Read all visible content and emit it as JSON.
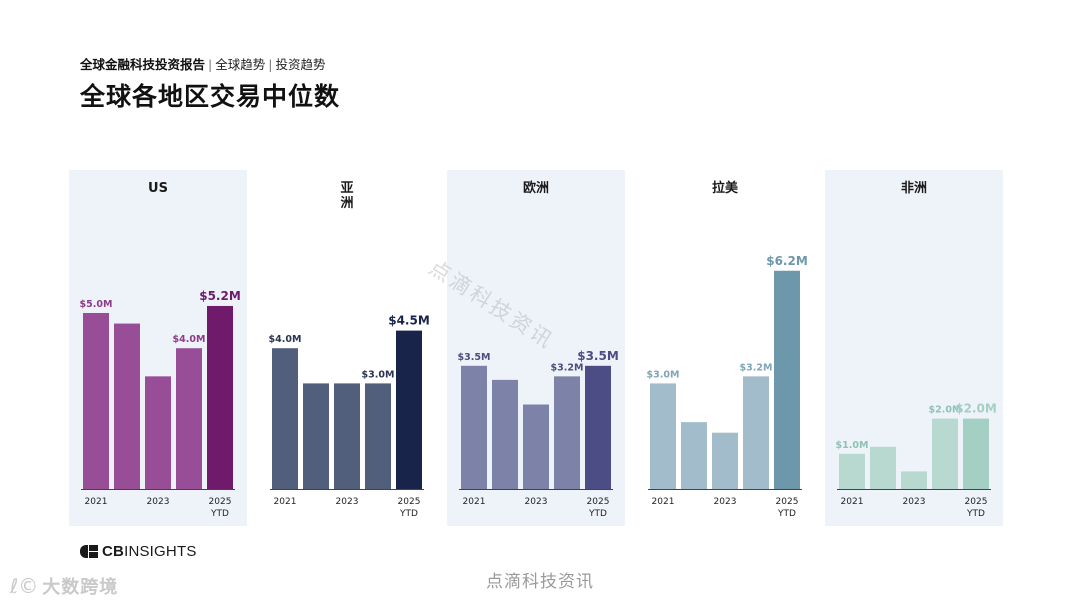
{
  "header": {
    "report_name": "全球金融科技投资报告",
    "crumb_1": "全球趋势",
    "crumb_2": "投资趋势",
    "separator": "|",
    "title": "全球各地区交易中位数"
  },
  "chart_data": [
    {
      "type": "bar",
      "title": "US",
      "x": [
        "2021",
        "2022",
        "2023",
        "2024",
        "2025 YTD"
      ],
      "tick_labels": [
        "2021",
        "2023",
        "2025",
        "YTD"
      ],
      "values": [
        5.0,
        4.7,
        3.2,
        4.0,
        5.2
      ],
      "value_labels": [
        "$5.0M",
        "",
        "",
        "$4.0M",
        "$5.2M"
      ],
      "colors": {
        "bar": "#974e97",
        "highlight": "#6f1a6a",
        "label": "#8c3d8a",
        "panel": "#eef3f9"
      },
      "shaded": true
    },
    {
      "type": "bar",
      "title": "亚\n洲",
      "x": [
        "2021",
        "2022",
        "2023",
        "2024",
        "2025 YTD"
      ],
      "tick_labels": [
        "2021",
        "2023",
        "2025",
        "YTD"
      ],
      "values": [
        4.0,
        3.0,
        3.0,
        3.0,
        4.5
      ],
      "value_labels": [
        "$4.0M",
        "",
        "",
        "$3.0M",
        "$4.5M"
      ],
      "colors": {
        "bar": "#525f7c",
        "highlight": "#18244a",
        "label": "#2c3550",
        "panel": "#ffffff"
      },
      "shaded": false
    },
    {
      "type": "bar",
      "title": "欧洲",
      "x": [
        "2021",
        "2022",
        "2023",
        "2024",
        "2025 YTD"
      ],
      "tick_labels": [
        "2021",
        "2023",
        "2025",
        "YTD"
      ],
      "values": [
        3.5,
        3.1,
        2.4,
        3.2,
        3.5
      ],
      "value_labels": [
        "$3.5M",
        "",
        "",
        "$3.2M",
        "$3.5M"
      ],
      "colors": {
        "bar": "#7d82a8",
        "highlight": "#4b4d84",
        "label": "#4b4f7c",
        "panel": "#eef3f9"
      },
      "shaded": true
    },
    {
      "type": "bar",
      "title": "拉美",
      "x": [
        "2021",
        "2022",
        "2023",
        "2024",
        "2025 YTD"
      ],
      "tick_labels": [
        "2021",
        "2023",
        "2025",
        "YTD"
      ],
      "values": [
        3.0,
        1.9,
        1.6,
        3.2,
        6.2
      ],
      "value_labels": [
        "$3.0M",
        "",
        "",
        "$3.2M",
        "$6.2M"
      ],
      "colors": {
        "bar": "#a3bccb",
        "highlight": "#6d97ab",
        "label": "#7fa6b8",
        "panel": "#ffffff"
      },
      "shaded": false
    },
    {
      "type": "bar",
      "title": "非洲",
      "x": [
        "2021",
        "2022",
        "2023",
        "2024",
        "2025 YTD"
      ],
      "tick_labels": [
        "2021",
        "2023",
        "2025",
        "YTD"
      ],
      "values": [
        1.0,
        1.2,
        0.5,
        2.0,
        2.0
      ],
      "value_labels": [
        "$1.0M",
        "",
        "",
        "$2.0M",
        "$2.0M"
      ],
      "colors": {
        "bar": "#b8d9d0",
        "highlight": "#a4cfc3",
        "label": "#8ec3b4",
        "panel": "#eef3f9"
      },
      "shaded": true
    }
  ],
  "logo": {
    "cb": "CB",
    "rest": "INSIGHTS"
  },
  "watermarks": {
    "diagonal": "点滴科技资讯",
    "bottom": "点滴科技资讯",
    "corner": "大数跨境",
    "corner_symbol": "ℓ©"
  }
}
